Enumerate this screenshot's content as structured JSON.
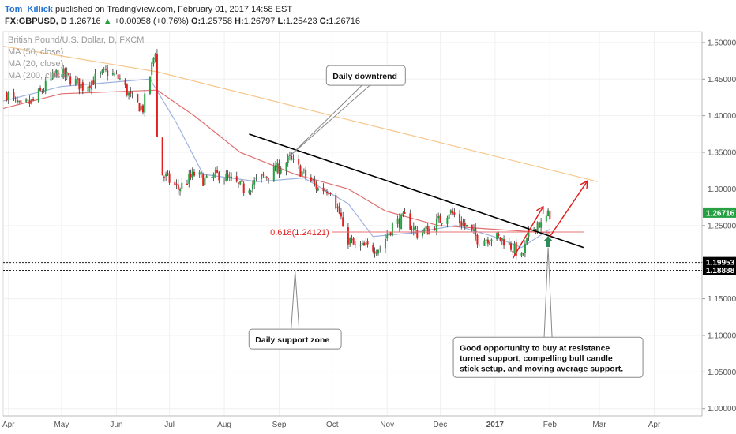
{
  "header": {
    "author": "Tom_Killick",
    "published_text": "published on TradingView.com, February 01, 2017 14:58 EST",
    "symbol": "FX:GBPUSD, D",
    "last": "1.26716",
    "change": "+0.00958 (+0.76%)",
    "open_label": "O:",
    "open": "1.25758",
    "high_label": "H:",
    "high": "1.26797",
    "low_label": "L:",
    "low": "1.25423",
    "close_label": "C:",
    "close": "1.26716"
  },
  "legend": {
    "title": "British Pound/U.S. Dollar, D, FXCM",
    "ma50": "MA (50, close)",
    "ma20": "MA (20, close)",
    "ma200": "MA (200, close)"
  },
  "chart_data": {
    "type": "candlestick",
    "x_start": "2016-03-29",
    "x_end": "2017-04-28",
    "ylim": [
      0.99,
      1.515
    ],
    "y_ticks": [
      1.0,
      1.05,
      1.1,
      1.15,
      1.2,
      1.25,
      1.3,
      1.35,
      1.4,
      1.45,
      1.5
    ],
    "y_tick_labels": [
      "1.00000",
      "1.05000",
      "1.10000",
      "1.15000",
      "1.20000",
      "1.25000",
      "1.30000",
      "1.35000",
      "1.40000",
      "1.45000",
      "1.50000"
    ],
    "x_ticks": [
      {
        "date": "2016-04-01",
        "label": "Apr"
      },
      {
        "date": "2016-05-01",
        "label": "May"
      },
      {
        "date": "2016-06-01",
        "label": "Jun"
      },
      {
        "date": "2016-07-01",
        "label": "Jul"
      },
      {
        "date": "2016-08-01",
        "label": "Aug"
      },
      {
        "date": "2016-09-01",
        "label": "Sep"
      },
      {
        "date": "2016-10-01",
        "label": "Oct"
      },
      {
        "date": "2016-11-01",
        "label": "Nov"
      },
      {
        "date": "2016-12-01",
        "label": "Dec"
      },
      {
        "date": "2017-01-01",
        "label": "2017"
      },
      {
        "date": "2017-02-01",
        "label": "Feb"
      },
      {
        "date": "2017-03-01",
        "label": "Mar"
      },
      {
        "date": "2017-04-01",
        "label": "Apr"
      }
    ],
    "close_path": [
      [
        "2016-03-31",
        1.43
      ],
      [
        "2016-04-08",
        1.41
      ],
      [
        "2016-04-15",
        1.42
      ],
      [
        "2016-04-22",
        1.44
      ],
      [
        "2016-04-29",
        1.46
      ],
      [
        "2016-05-06",
        1.45
      ],
      [
        "2016-05-13",
        1.44
      ],
      [
        "2016-05-20",
        1.45
      ],
      [
        "2016-05-27",
        1.46
      ],
      [
        "2016-06-03",
        1.45
      ],
      [
        "2016-06-10",
        1.42
      ],
      [
        "2016-06-16",
        1.41
      ],
      [
        "2016-06-23",
        1.49
      ],
      [
        "2016-06-24",
        1.37
      ],
      [
        "2016-06-27",
        1.32
      ],
      [
        "2016-07-06",
        1.3
      ],
      [
        "2016-07-15",
        1.32
      ],
      [
        "2016-07-22",
        1.31
      ],
      [
        "2016-07-29",
        1.32
      ],
      [
        "2016-08-05",
        1.31
      ],
      [
        "2016-08-12",
        1.3
      ],
      [
        "2016-08-19",
        1.31
      ],
      [
        "2016-08-26",
        1.32
      ],
      [
        "2016-09-02",
        1.33
      ],
      [
        "2016-09-07",
        1.34
      ],
      [
        "2016-09-15",
        1.32
      ],
      [
        "2016-09-23",
        1.3
      ],
      [
        "2016-09-30",
        1.3
      ],
      [
        "2016-10-06",
        1.26
      ],
      [
        "2016-10-07",
        1.24
      ],
      [
        "2016-10-14",
        1.22
      ],
      [
        "2016-10-21",
        1.22
      ],
      [
        "2016-10-28",
        1.22
      ],
      [
        "2016-11-04",
        1.25
      ],
      [
        "2016-11-11",
        1.26
      ],
      [
        "2016-11-18",
        1.24
      ],
      [
        "2016-11-25",
        1.245
      ],
      [
        "2016-12-02",
        1.26
      ],
      [
        "2016-12-06",
        1.27
      ],
      [
        "2016-12-15",
        1.25
      ],
      [
        "2016-12-23",
        1.23
      ],
      [
        "2016-12-30",
        1.235
      ],
      [
        "2017-01-06",
        1.23
      ],
      [
        "2017-01-13",
        1.215
      ],
      [
        "2017-01-16",
        1.205
      ],
      [
        "2017-01-20",
        1.235
      ],
      [
        "2017-01-25",
        1.255
      ],
      [
        "2017-01-27",
        1.25
      ],
      [
        "2017-02-01",
        1.267
      ]
    ],
    "ma200": [
      [
        "2016-03-29",
        1.495
      ],
      [
        "2016-06-24",
        1.46
      ],
      [
        "2016-10-01",
        1.4
      ],
      [
        "2017-02-28",
        1.31
      ]
    ],
    "ma50": [
      [
        "2016-03-29",
        1.41
      ],
      [
        "2016-05-01",
        1.43
      ],
      [
        "2016-06-24",
        1.435
      ],
      [
        "2016-07-15",
        1.4
      ],
      [
        "2016-08-10",
        1.35
      ],
      [
        "2016-09-10",
        1.32
      ],
      [
        "2016-10-10",
        1.3
      ],
      [
        "2016-10-31",
        1.27
      ],
      [
        "2016-11-30",
        1.25
      ],
      [
        "2016-12-31",
        1.245
      ],
      [
        "2017-02-01",
        1.24
      ]
    ],
    "ma20": [
      [
        "2016-03-29",
        1.42
      ],
      [
        "2016-05-01",
        1.44
      ],
      [
        "2016-06-20",
        1.45
      ],
      [
        "2016-07-05",
        1.39
      ],
      [
        "2016-07-20",
        1.32
      ],
      [
        "2016-08-20",
        1.31
      ],
      [
        "2016-09-15",
        1.315
      ],
      [
        "2016-10-10",
        1.28
      ],
      [
        "2016-10-24",
        1.235
      ],
      [
        "2016-11-15",
        1.24
      ],
      [
        "2016-12-10",
        1.25
      ],
      [
        "2016-12-31",
        1.235
      ],
      [
        "2017-01-16",
        1.22
      ],
      [
        "2017-02-01",
        1.245
      ]
    ],
    "downtrend": [
      [
        "2016-08-15",
        1.375
      ],
      [
        "2017-02-20",
        1.22
      ]
    ],
    "fib_level": 1.24121,
    "fib_label": "0.618(1.24121)",
    "fib_range": [
      "2016-10-01",
      "2017-02-20"
    ],
    "support_levels": [
      1.19953,
      1.18888
    ],
    "price_labels": [
      {
        "value": 1.26716,
        "text": "1.26716",
        "color": "#26a042"
      },
      {
        "value": 1.19953,
        "text": "1.19953",
        "color": "#000000"
      },
      {
        "value": 1.18888,
        "text": "1.18888",
        "color": "#000000"
      }
    ],
    "arrows": [
      {
        "from": [
          "2017-01-11",
          1.205
        ],
        "to": [
          "2017-01-28",
          1.275
        ],
        "color": "#e02020"
      },
      {
        "from": [
          "2017-02-01",
          1.235
        ],
        "to": [
          "2017-02-22",
          1.31
        ],
        "color": "#e02020"
      }
    ],
    "up_marker": {
      "date": "2017-01-31",
      "value": 1.225,
      "color": "#2e8b57"
    },
    "annotations": [
      {
        "id": "downtrend",
        "lines": [
          "Daily downtrend"
        ],
        "anchor": [
          "2016-09-07",
          1.345
        ],
        "box_date": "2016-10-20",
        "box_value": 1.455
      },
      {
        "id": "support",
        "lines": [
          "Daily support zone"
        ],
        "anchor": [
          "2016-09-10",
          1.188
        ],
        "box_date": "2016-09-10",
        "box_value": 1.095
      },
      {
        "id": "opportunity",
        "lines": [
          "Good opportunity to buy at resistance",
          "turned support, compelling bull candle",
          "stick setup, and moving average support."
        ],
        "anchor": [
          "2017-01-31",
          1.22
        ],
        "box_date": "2017-01-31",
        "box_value": 1.07
      }
    ],
    "colors": {
      "up": "#26a042",
      "down": "#e02020",
      "ma200": "#f7c58a",
      "ma50": "#e07070",
      "ma20": "#9eb3e0"
    }
  }
}
